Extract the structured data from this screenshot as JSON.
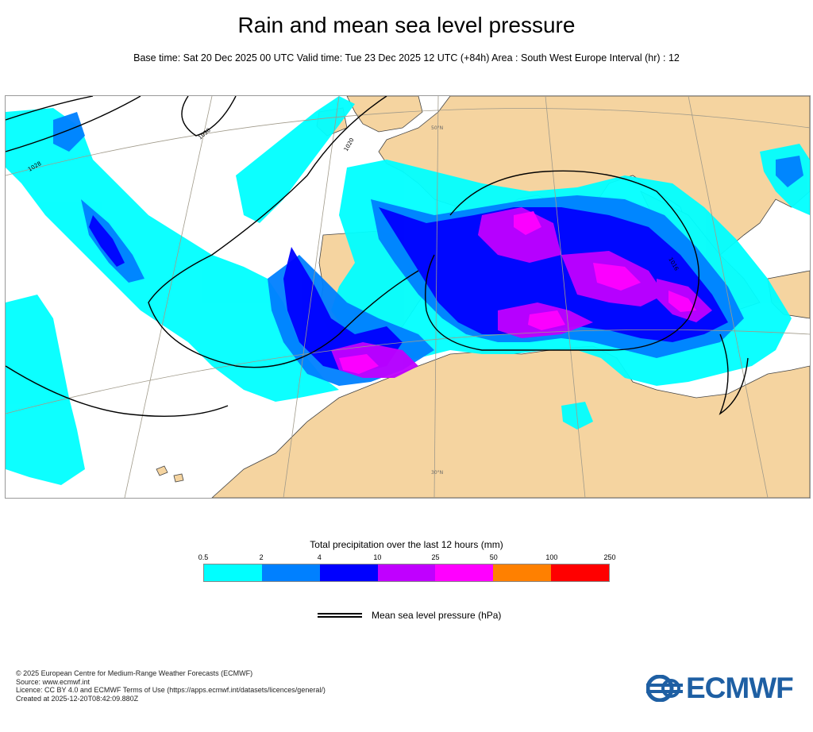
{
  "title": "Rain and mean sea level pressure",
  "subtitle": "Base time: Sat 20 Dec 2025 00 UTC Valid time: Tue 23 Dec 2025 12 UTC (+84h) Area : South West Europe Interval (hr) : 12",
  "map": {
    "graticule_labels": [
      "50°N",
      "30°N"
    ],
    "isobar_labels": [
      "1028",
      "1030",
      "1020",
      "1016"
    ],
    "colors": {
      "land": "#f5d4a0",
      "sea": "#ffffff",
      "isobar": "#000000",
      "coast": "#333333",
      "graticule": "#a09a8a"
    }
  },
  "legend": {
    "title": "Total precipitation over the last 12 hours (mm)",
    "thresholds": [
      "0.5",
      "2",
      "4",
      "10",
      "25",
      "50",
      "100",
      "250"
    ],
    "colors": [
      "#00ffff",
      "#0080ff",
      "#0000ff",
      "#c000ff",
      "#ff00ff",
      "#ff8000",
      "#ff0000"
    ]
  },
  "mslp_legend": {
    "label": "Mean sea level pressure (hPa)"
  },
  "footer": {
    "line1": "© 2025 European Centre for Medium-Range Weather Forecasts (ECMWF)",
    "line2": "Source: www.ecmwf.int",
    "line3": "Licence: CC BY 4.0 and ECMWF Terms of Use (https://apps.ecmwf.int/datasets/licences/general/)",
    "line4": "Created at 2025-12-20T08:42:09.880Z"
  },
  "logo": {
    "text": "ECMWF",
    "icon": "ecmwf-logo-icon"
  }
}
